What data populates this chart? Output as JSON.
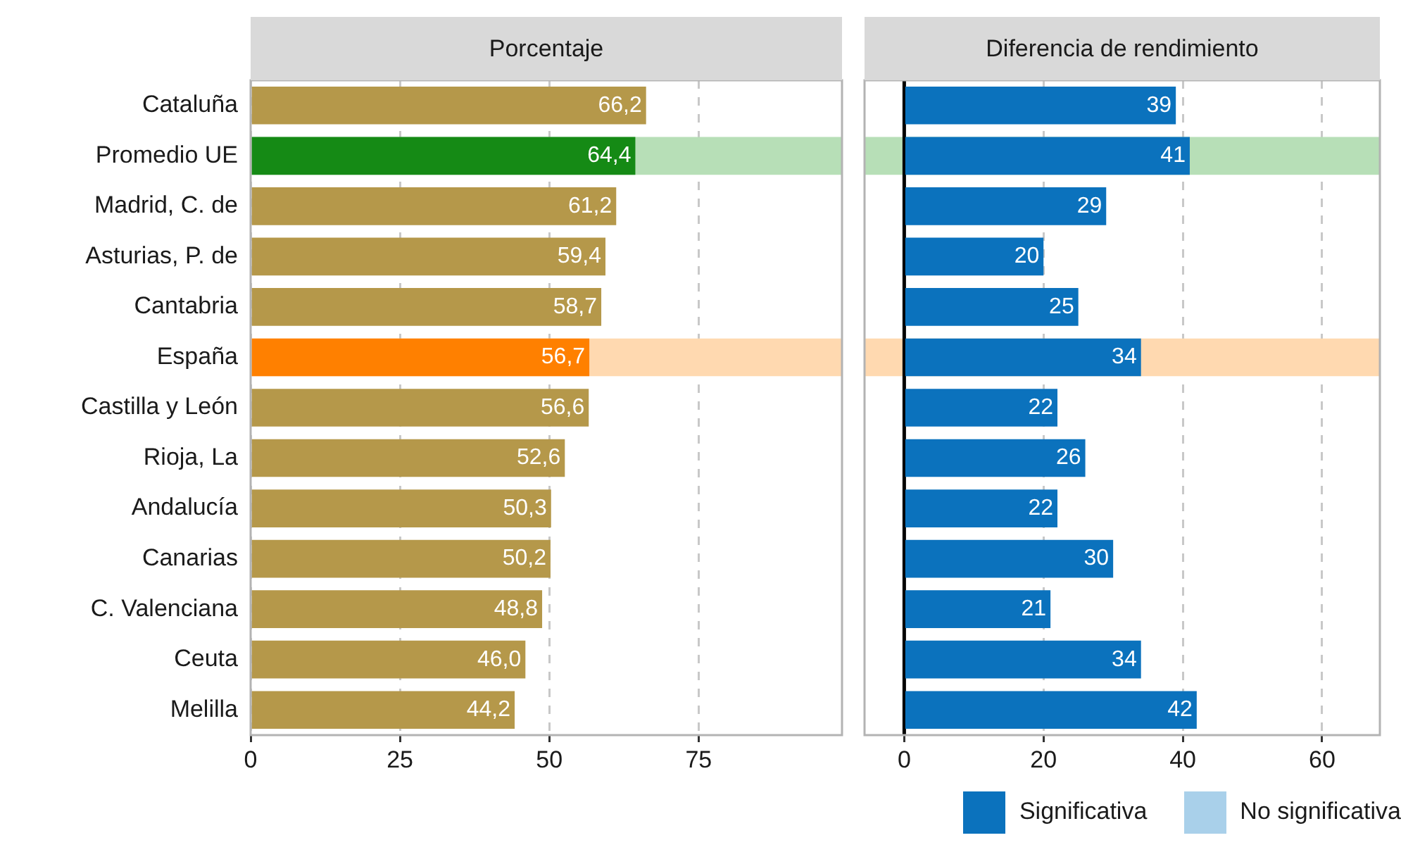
{
  "chart_data": [
    {
      "type": "bar",
      "orientation": "horizontal",
      "title": "Porcentaje",
      "categories": [
        "Cataluña",
        "Promedio UE",
        "Madrid, C. de",
        "Asturias, P. de",
        "Cantabria",
        "España",
        "Castilla y León",
        "Rioja, La",
        "Andalucía",
        "Canarias",
        "C. Valenciana",
        "Ceuta",
        "Melilla"
      ],
      "values": [
        66.2,
        64.4,
        61.2,
        59.4,
        58.7,
        56.7,
        56.6,
        52.6,
        50.3,
        50.2,
        48.8,
        46.0,
        44.2
      ],
      "colors": [
        "#b5984a",
        "#158a15",
        "#b5984a",
        "#b5984a",
        "#b5984a",
        "#ff8000",
        "#b5984a",
        "#b5984a",
        "#b5984a",
        "#b5984a",
        "#b5984a",
        "#b5984a",
        "#b5984a"
      ],
      "value_labels": [
        "66,2",
        "64,4",
        "61,2",
        "59,4",
        "58,7",
        "56,7",
        "56,6",
        "52,6",
        "50,3",
        "50,2",
        "48,8",
        "46,0",
        "44,2"
      ],
      "bands": [
        {
          "axis": "y",
          "from": "Promedio UE",
          "to": "Promedio UE",
          "color": "#b7dfb7"
        },
        {
          "axis": "y",
          "from": "España",
          "to": "España",
          "color": "#ffd9b0"
        }
      ],
      "xlim": [
        0,
        99
      ],
      "xticks": [
        0,
        25,
        50,
        75
      ],
      "grid": "x",
      "legend": false
    },
    {
      "type": "bar",
      "orientation": "horizontal",
      "title": "Diferencia de rendimiento",
      "stacked": true,
      "categories": [
        "Cataluña",
        "Promedio UE",
        "Madrid, C. de",
        "Asturias, P. de",
        "Cantabria",
        "España",
        "Castilla y León",
        "Rioja, La",
        "Andalucía",
        "Canarias",
        "C. Valenciana",
        "Ceuta",
        "Melilla"
      ],
      "series": [
        {
          "name": "Significativa",
          "color": "#0b72bd",
          "values": [
            39,
            41,
            29,
            20,
            25,
            34,
            22,
            26,
            22,
            30,
            21,
            34,
            42
          ]
        },
        {
          "name": "No significativa",
          "color": "#a9d0ea",
          "values": [
            null,
            null,
            null,
            null,
            null,
            null,
            null,
            null,
            null,
            null,
            null,
            null,
            null
          ]
        }
      ],
      "data_labels": true,
      "bands": [
        {
          "axis": "y",
          "from": "Promedio UE",
          "to": "Promedio UE",
          "color": "#b7dfb7"
        },
        {
          "axis": "y",
          "from": "España",
          "to": "España",
          "color": "#ffd9b0"
        }
      ],
      "ref_lines": [
        {
          "axis": "x",
          "value": 0,
          "color": "#000000"
        }
      ],
      "xlim": [
        -5.7,
        68.3
      ],
      "xticks": [
        0,
        20,
        40,
        60
      ],
      "grid": "x",
      "tick_labels": "x",
      "legend": "bottom right"
    }
  ]
}
